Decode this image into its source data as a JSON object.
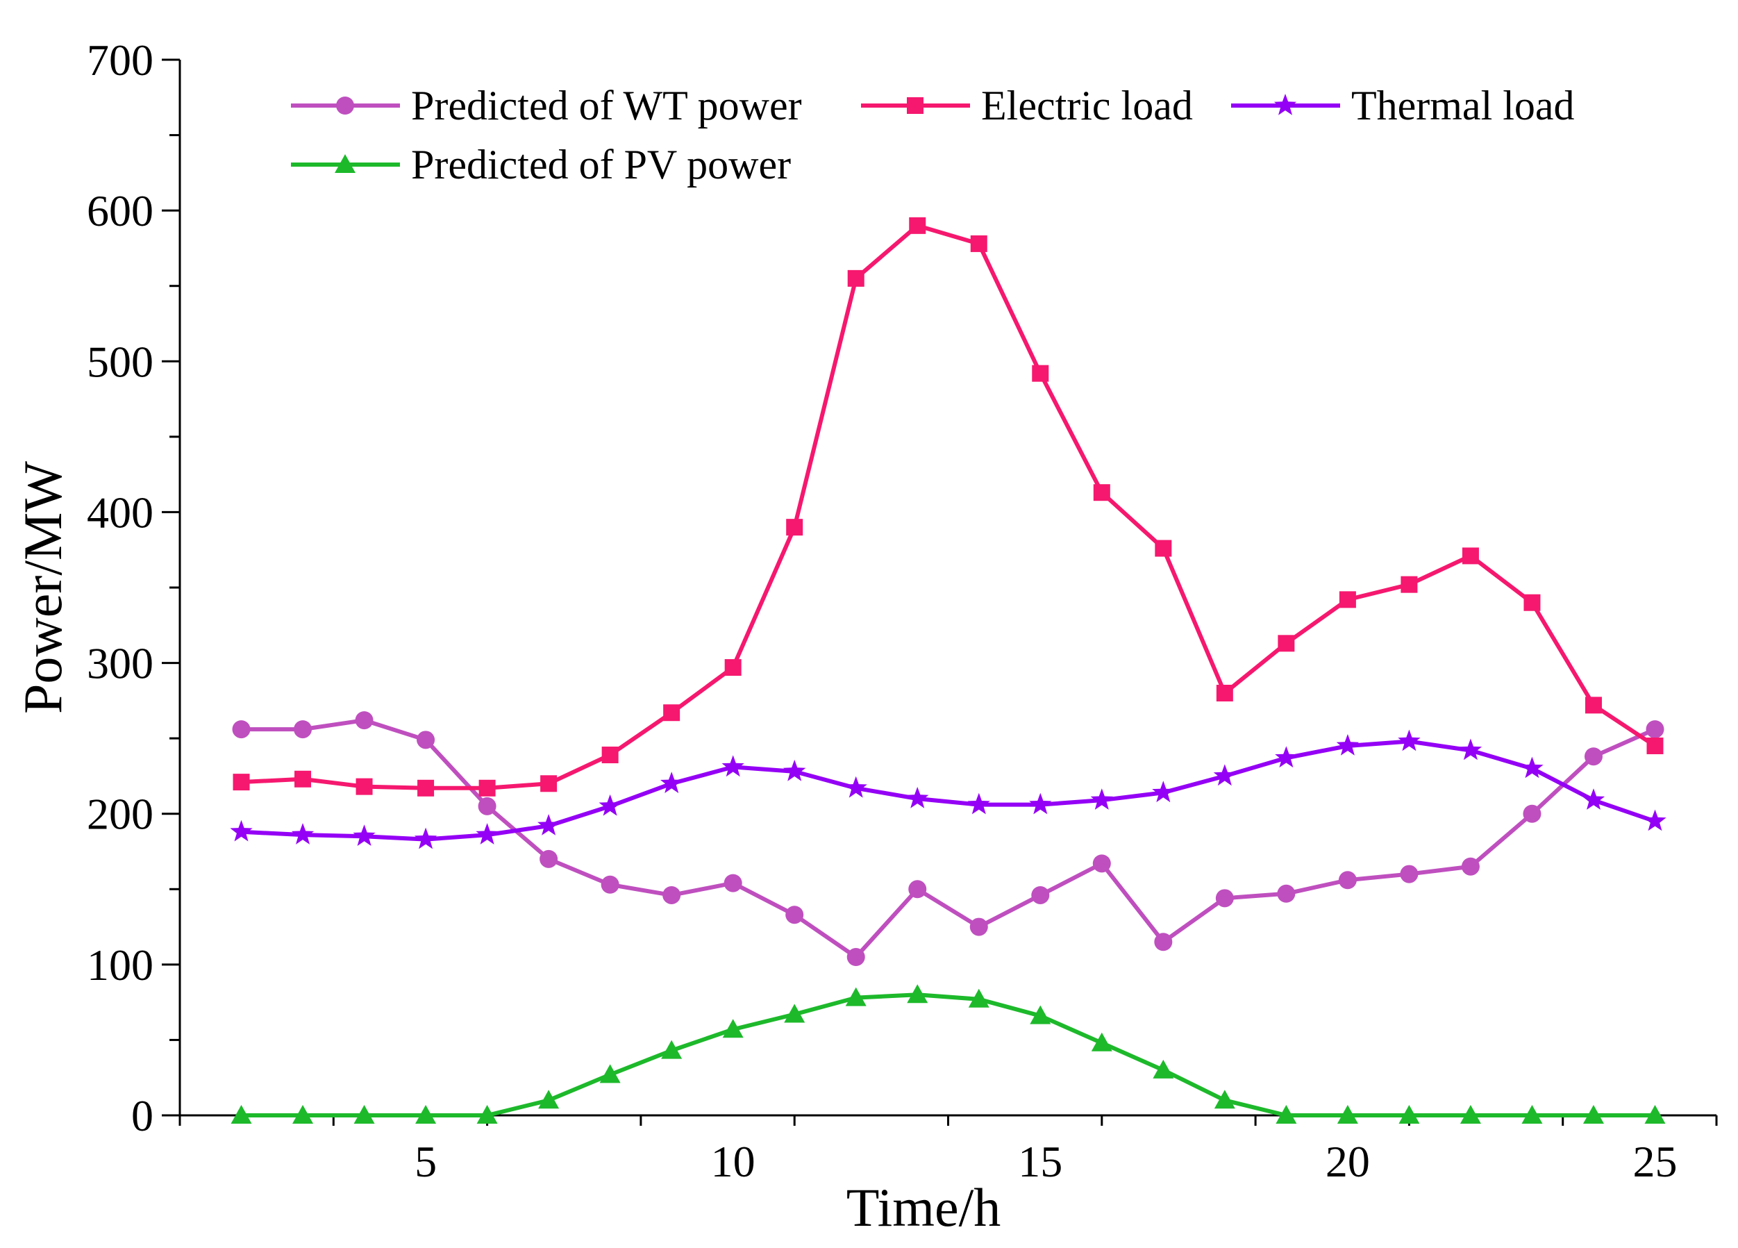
{
  "chart_data": {
    "type": "line",
    "title": "",
    "xlabel": "Time/h",
    "ylabel": "Power/MW",
    "xlim": [
      1,
      26
    ],
    "ylim": [
      0,
      700
    ],
    "xticks": [
      5,
      10,
      15,
      20,
      25
    ],
    "yticks": [
      0,
      100,
      200,
      300,
      400,
      500,
      600,
      700
    ],
    "grid": false,
    "legend_placement": "top-left",
    "x": [
      2,
      3,
      4,
      5,
      6,
      7,
      8,
      9,
      10,
      11,
      12,
      13,
      14,
      15,
      16,
      17,
      18,
      19,
      20,
      21,
      22,
      23,
      24,
      25
    ],
    "series": [
      {
        "name": "Predicted of WT power",
        "color": "#BF4FBF",
        "marker": "circle",
        "values": [
          256,
          256,
          262,
          249,
          205,
          170,
          153,
          146,
          154,
          133,
          105,
          150,
          125,
          146,
          167,
          115,
          144,
          147,
          156,
          160,
          165,
          200,
          238,
          256
        ]
      },
      {
        "name": "Electric load",
        "color": "#F5186E",
        "marker": "square",
        "values": [
          221,
          223,
          218,
          217,
          217,
          220,
          239,
          267,
          297,
          390,
          555,
          590,
          578,
          492,
          413,
          376,
          280,
          313,
          342,
          352,
          371,
          340,
          272,
          245
        ]
      },
      {
        "name": "Thermal load",
        "color": "#9400F5",
        "marker": "star",
        "values": [
          188,
          186,
          185,
          183,
          186,
          192,
          205,
          220,
          231,
          228,
          217,
          210,
          206,
          206,
          209,
          214,
          225,
          237,
          245,
          248,
          242,
          230,
          209,
          195
        ]
      },
      {
        "name": "Predicted of PV power",
        "color": "#1DB92B",
        "marker": "triangle",
        "values": [
          0,
          0,
          0,
          0,
          0,
          10,
          27,
          43,
          57,
          67,
          78,
          80,
          77,
          66,
          48,
          30,
          10,
          0,
          0,
          0,
          0,
          0,
          0,
          0
        ]
      }
    ]
  }
}
